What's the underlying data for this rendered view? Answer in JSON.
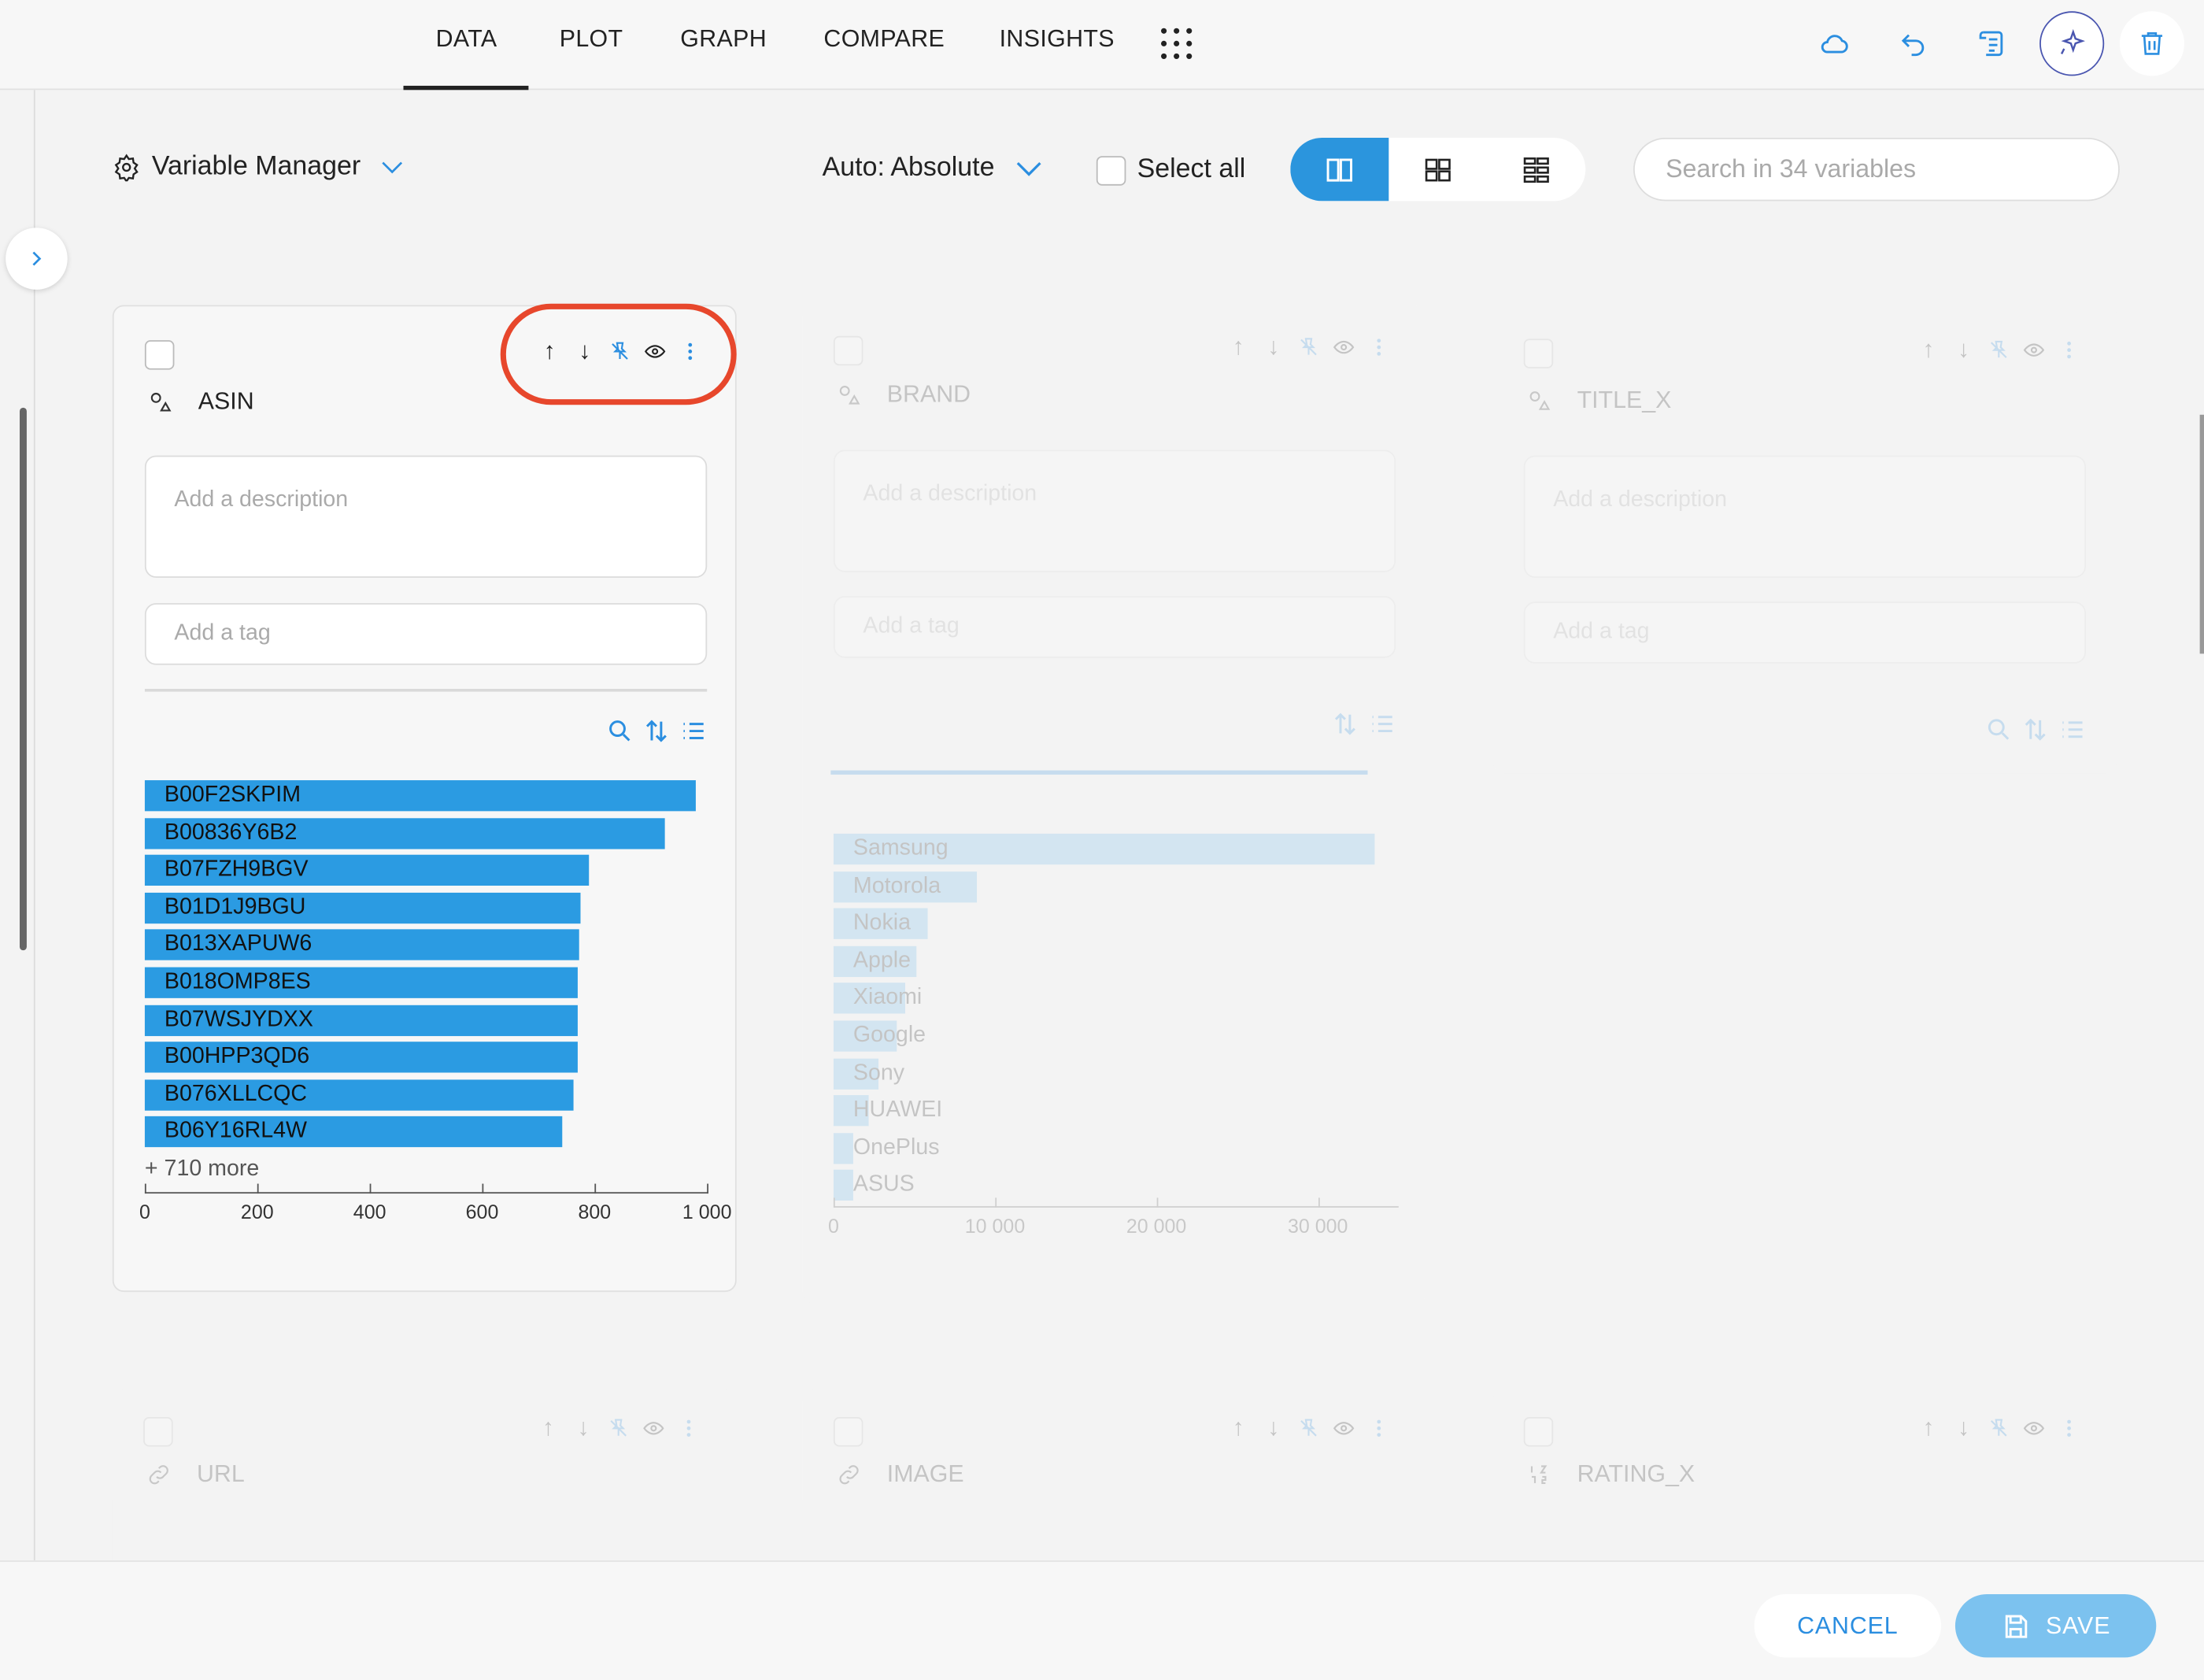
{
  "nav": {
    "tabs": [
      {
        "label": "DATA",
        "active": true
      },
      {
        "label": "PLOT"
      },
      {
        "label": "GRAPH"
      },
      {
        "label": "COMPARE"
      },
      {
        "label": "INSIGHTS"
      }
    ]
  },
  "toolbar": {
    "variable_manager": "Variable Manager",
    "auto_mode": "Auto: Absolute",
    "select_all": "Select all",
    "search_placeholder": "Search in 34 variables"
  },
  "cards": {
    "asin": {
      "name": "ASIN",
      "description_placeholder": "Add a description",
      "tag_placeholder": "Add a tag",
      "more": "+ 710 more",
      "bars": [
        {
          "label": "B00F2SKPIM",
          "value": 980
        },
        {
          "label": "B00836Y6B2",
          "value": 925
        },
        {
          "label": "B07FZH9BGV",
          "value": 790
        },
        {
          "label": "B01D1J9BGU",
          "value": 775
        },
        {
          "label": "B013XAPUW6",
          "value": 772
        },
        {
          "label": "B018OMP8ES",
          "value": 770
        },
        {
          "label": "B07WSJYDXX",
          "value": 770
        },
        {
          "label": "B00HPP3QD6",
          "value": 770
        },
        {
          "label": "B076XLLCQC",
          "value": 763
        },
        {
          "label": "B06Y16RL4W",
          "value": 743
        }
      ],
      "axis_ticks": [
        "0",
        "200",
        "400",
        "600",
        "800",
        "1 000"
      ]
    },
    "brand": {
      "name": "BRAND",
      "description_placeholder": "Add a description",
      "tag_placeholder": "Add a tag",
      "bars": [
        {
          "label": "Samsung",
          "value": 33500
        },
        {
          "label": "Motorola",
          "value": 8900
        },
        {
          "label": "Nokia",
          "value": 5800
        },
        {
          "label": "Apple",
          "value": 5100
        },
        {
          "label": "Xiaomi",
          "value": 4400
        },
        {
          "label": "Google",
          "value": 3900
        },
        {
          "label": "Sony",
          "value": 2800
        },
        {
          "label": "HUAWEI",
          "value": 2200
        },
        {
          "label": "OnePlus",
          "value": 250
        },
        {
          "label": "ASUS",
          "value": 200
        }
      ],
      "axis_ticks": [
        "0",
        "10 000",
        "20 000",
        "30 000"
      ]
    },
    "title_x": {
      "name": "TITLE_X",
      "description_placeholder": "Add a description",
      "tag_placeholder": "Add a tag"
    },
    "url": {
      "name": "URL"
    },
    "image": {
      "name": "IMAGE"
    },
    "rating_x": {
      "name": "RATING_X"
    }
  },
  "footer": {
    "cancel": "CANCEL",
    "save": "SAVE"
  },
  "colors": {
    "accent": "#2b95dd",
    "bar": "#2b9be2",
    "highlight": "#e7472c"
  }
}
